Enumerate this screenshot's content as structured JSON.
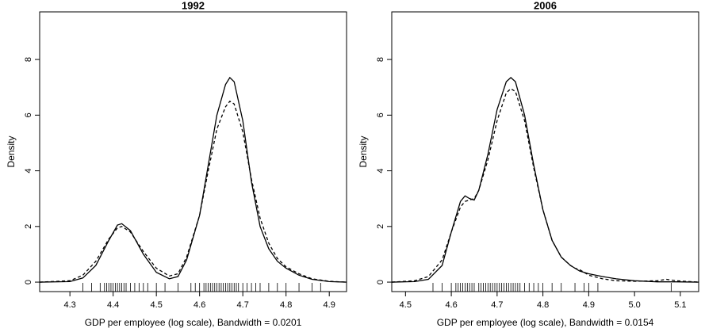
{
  "chart_data": [
    {
      "type": "line",
      "title": "1992",
      "xlabel": "GDP per employee (log scale), Bandwidth =  0.0201",
      "ylabel": "Density",
      "xlim": [
        4.23,
        4.94
      ],
      "ylim": [
        -0.34,
        9.71
      ],
      "xticks": [
        4.3,
        4.4,
        4.5,
        4.6,
        4.7,
        4.8,
        4.9
      ],
      "yticks": [
        0,
        2,
        4,
        6,
        8
      ],
      "x": [
        4.23,
        4.3,
        4.33,
        4.36,
        4.39,
        4.41,
        4.42,
        4.44,
        4.47,
        4.5,
        4.53,
        4.55,
        4.57,
        4.6,
        4.62,
        4.64,
        4.66,
        4.67,
        4.68,
        4.7,
        4.72,
        4.74,
        4.76,
        4.78,
        4.8,
        4.83,
        4.86,
        4.9,
        4.94
      ],
      "series": [
        {
          "color": "#000000",
          "dash": "solid",
          "values": [
            0,
            0.02,
            0.15,
            0.6,
            1.5,
            2.05,
            2.1,
            1.85,
            1.0,
            0.35,
            0.12,
            0.2,
            0.8,
            2.4,
            4.2,
            6.0,
            7.1,
            7.35,
            7.2,
            5.8,
            3.6,
            2.0,
            1.2,
            0.75,
            0.5,
            0.25,
            0.1,
            0.02,
            0
          ]
        },
        {
          "color": "#000000",
          "dash": "dashed",
          "values": [
            0,
            0.05,
            0.25,
            0.75,
            1.55,
            1.95,
            2.0,
            1.8,
            1.1,
            0.5,
            0.22,
            0.3,
            0.9,
            2.4,
            4.0,
            5.5,
            6.3,
            6.5,
            6.4,
            5.4,
            3.7,
            2.3,
            1.4,
            0.85,
            0.55,
            0.3,
            0.12,
            0.03,
            0
          ]
        }
      ],
      "rug": [
        4.33,
        4.35,
        4.37,
        4.38,
        4.385,
        4.39,
        4.395,
        4.4,
        4.405,
        4.41,
        4.415,
        4.42,
        4.425,
        4.43,
        4.44,
        4.45,
        4.46,
        4.47,
        4.48,
        4.5,
        4.52,
        4.55,
        4.58,
        4.59,
        4.6,
        4.61,
        4.615,
        4.62,
        4.625,
        4.63,
        4.635,
        4.64,
        4.645,
        4.65,
        4.655,
        4.66,
        4.665,
        4.67,
        4.675,
        4.68,
        4.685,
        4.69,
        4.7,
        4.71,
        4.72,
        4.73,
        4.74,
        4.76,
        4.78,
        4.8,
        4.83,
        4.86,
        4.88
      ]
    },
    {
      "type": "line",
      "title": "2006",
      "xlabel": "GDP per employee (log scale), Bandwidth =  0.0154",
      "ylabel": "Density",
      "xlim": [
        4.47,
        5.14
      ],
      "ylim": [
        -0.34,
        9.71
      ],
      "xticks": [
        4.5,
        4.6,
        4.7,
        4.8,
        4.9,
        {
          "value": 5,
          "label": "5.0"
        },
        5.1
      ],
      "yticks": [
        0,
        2,
        4,
        6,
        8
      ],
      "x": [
        4.47,
        4.52,
        4.55,
        4.58,
        4.6,
        4.62,
        4.63,
        4.64,
        4.65,
        4.66,
        4.68,
        4.7,
        4.72,
        4.73,
        4.74,
        4.76,
        4.78,
        4.8,
        4.82,
        4.84,
        4.86,
        4.87,
        4.88,
        4.9,
        4.93,
        4.96,
        5.0,
        5.05,
        5.07,
        5.09,
        5.14
      ],
      "series": [
        {
          "color": "#000000",
          "dash": "solid",
          "values": [
            0,
            0.02,
            0.1,
            0.6,
            1.8,
            2.9,
            3.1,
            3.0,
            2.95,
            3.3,
            4.6,
            6.2,
            7.2,
            7.35,
            7.2,
            6.0,
            4.2,
            2.6,
            1.5,
            0.9,
            0.6,
            0.5,
            0.4,
            0.3,
            0.2,
            0.12,
            0.05,
            0.01,
            0.01,
            0.01,
            0
          ]
        },
        {
          "color": "#000000",
          "dash": "dashed",
          "values": [
            0,
            0.05,
            0.2,
            0.8,
            1.8,
            2.7,
            2.9,
            2.95,
            3.0,
            3.3,
            4.4,
            5.8,
            6.8,
            6.95,
            6.85,
            5.8,
            4.1,
            2.6,
            1.5,
            0.9,
            0.6,
            0.5,
            0.45,
            0.25,
            0.12,
            0.05,
            0.03,
            0.05,
            0.1,
            0.05,
            0
          ]
        }
      ],
      "rug": [
        4.56,
        4.58,
        4.6,
        4.61,
        4.615,
        4.62,
        4.625,
        4.63,
        4.635,
        4.64,
        4.645,
        4.65,
        4.66,
        4.665,
        4.67,
        4.675,
        4.68,
        4.685,
        4.69,
        4.695,
        4.7,
        4.705,
        4.71,
        4.715,
        4.72,
        4.725,
        4.73,
        4.735,
        4.74,
        4.745,
        4.75,
        4.76,
        4.77,
        4.78,
        4.79,
        4.8,
        4.82,
        4.84,
        4.87,
        4.89,
        4.9,
        4.92,
        5.08
      ]
    }
  ]
}
